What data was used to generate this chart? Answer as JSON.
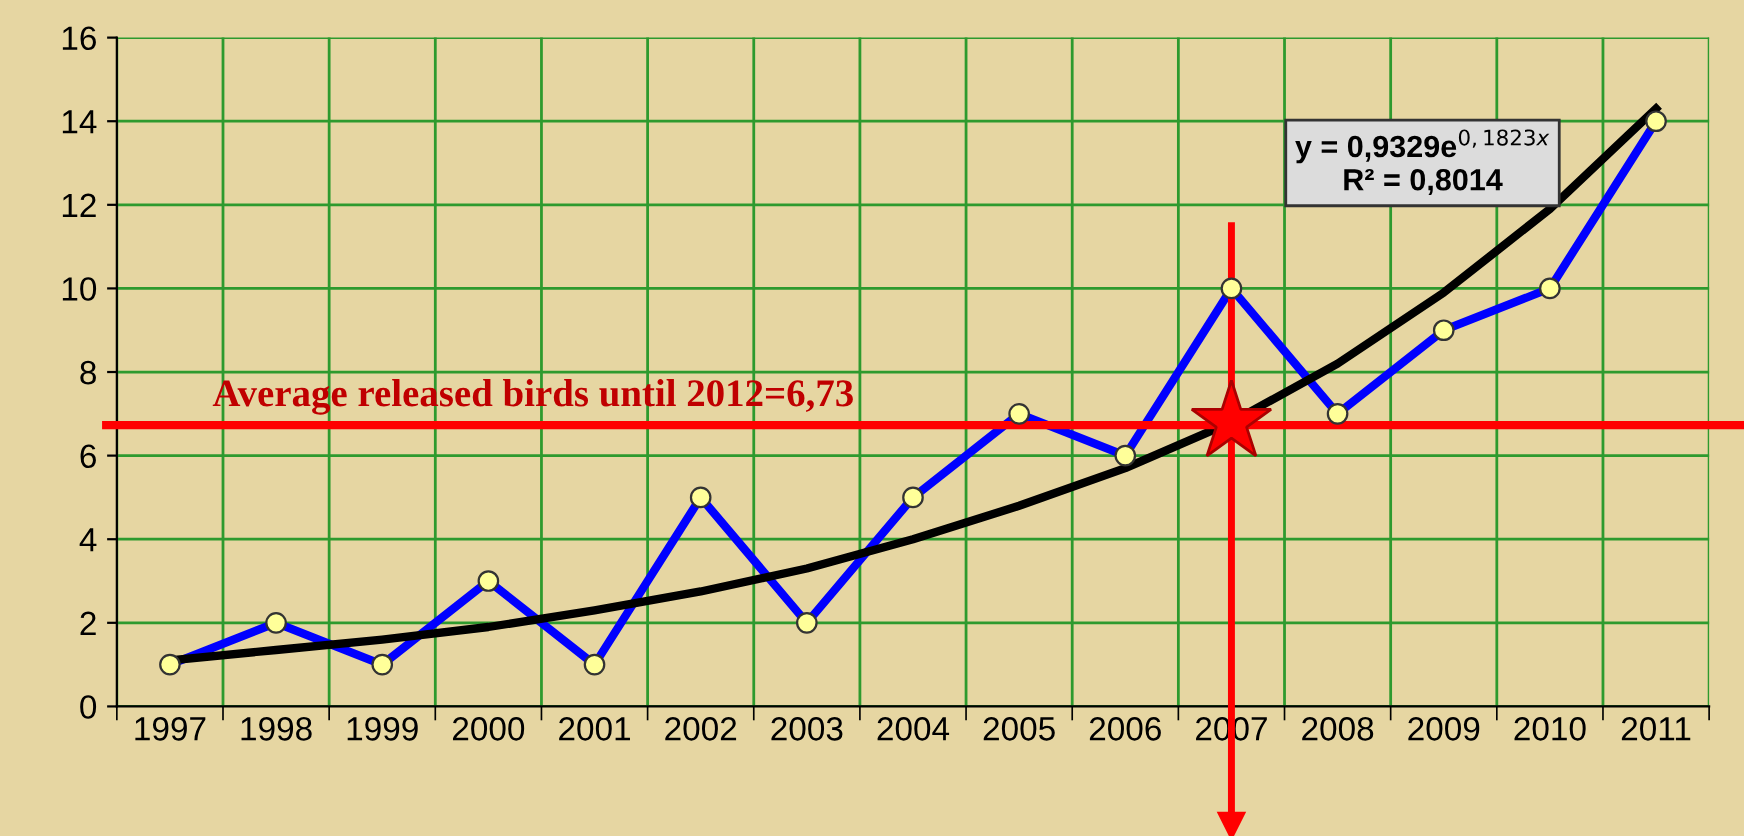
{
  "chart_data": {
    "type": "line",
    "categories": [
      "1997",
      "1998",
      "1999",
      "2000",
      "2001",
      "2002",
      "2003",
      "2004",
      "2005",
      "2006",
      "2007",
      "2008",
      "2009",
      "2010",
      "2011"
    ],
    "series": [
      {
        "color": "#0000ff",
        "marker": "circle",
        "values": [
          1,
          2,
          1,
          3,
          1,
          5,
          2,
          5,
          7,
          6,
          10,
          7,
          9,
          10,
          14
        ]
      },
      {
        "color": "#000000",
        "marker": "none",
        "values": [
          1.1,
          1.35,
          1.6,
          1.9,
          2.3,
          2.75,
          3.3,
          4.0,
          4.8,
          5.7,
          6.8,
          8.2,
          9.9,
          11.9,
          14.3
        ]
      }
    ],
    "ylim": [
      0,
      16
    ],
    "yticks": [
      0,
      2,
      4,
      6,
      8,
      10,
      12,
      14,
      16
    ],
    "grid": true,
    "legend": false,
    "ref_lines": [
      {
        "axis": "y",
        "value": 6.73,
        "label": "Average released birds until 2012=6,73",
        "color": "#ff0000"
      },
      {
        "axis": "x",
        "value": "2007",
        "label": null,
        "color": "#ff0000"
      }
    ],
    "annotations": [
      "y = 0,9329e$^{0,1823x}$\nR² = 0,8014"
    ]
  }
}
